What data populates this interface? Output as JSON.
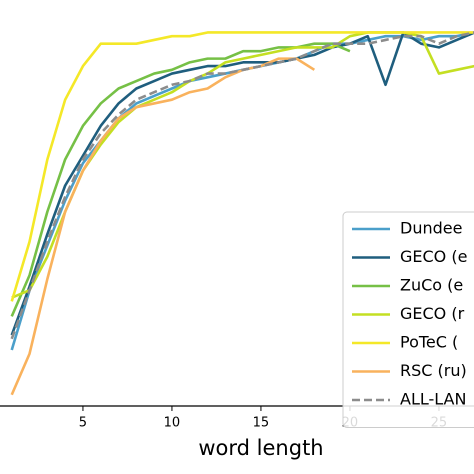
{
  "chart_data": {
    "type": "line",
    "x_label": "word length",
    "x": [
      1,
      2,
      3,
      4,
      5,
      6,
      7,
      8,
      9,
      10,
      11,
      12,
      13,
      14,
      15,
      16,
      17,
      18,
      19,
      20,
      21,
      22,
      23,
      24,
      25,
      26,
      27
    ],
    "xlim": [
      0.34,
      26.97
    ],
    "xticks": [
      5,
      10,
      15,
      20,
      25
    ],
    "ylim": [
      0,
      1.02
    ],
    "legend": "lower right",
    "series": [
      {
        "name": "Dundee",
        "color": "#4b9fca",
        "values": [
          0.15,
          0.31,
          0.43,
          0.55,
          0.65,
          0.71,
          0.77,
          0.81,
          0.83,
          0.85,
          0.87,
          0.88,
          0.89,
          0.9,
          0.91,
          0.92,
          0.93,
          0.95,
          0.97,
          0.97,
          0.98,
          0.99,
          0.99,
          0.98,
          0.99,
          0.99,
          1.0
        ]
      },
      {
        "name": "GECO (e",
        "color": "#1f5e7e",
        "values": [
          0.19,
          0.32,
          0.46,
          0.59,
          0.67,
          0.75,
          0.81,
          0.85,
          0.87,
          0.89,
          0.9,
          0.91,
          0.91,
          0.92,
          0.92,
          0.92,
          0.93,
          0.94,
          0.96,
          0.97,
          0.99,
          0.86,
          1.0,
          0.97,
          0.96,
          0.98,
          1.0
        ]
      },
      {
        "name": "ZuCo (e",
        "color": "#76c046",
        "values": [
          0.24,
          0.35,
          0.52,
          0.66,
          0.75,
          0.81,
          0.85,
          0.87,
          0.89,
          0.9,
          0.92,
          0.93,
          0.93,
          0.95,
          0.95,
          0.96,
          0.96,
          0.97,
          0.97,
          0.95,
          null,
          null,
          null,
          null,
          null,
          null,
          null
        ]
      },
      {
        "name": "GECO (r",
        "color": "#c4df22",
        "values": [
          0.29,
          0.31,
          0.4,
          0.52,
          0.63,
          0.7,
          0.76,
          0.8,
          0.82,
          0.84,
          0.87,
          0.89,
          0.92,
          0.93,
          0.94,
          0.95,
          0.96,
          0.96,
          0.96,
          0.99,
          1.0,
          1.0,
          1.0,
          0.99,
          0.89,
          0.9,
          0.91
        ]
      },
      {
        "name": "PoTeC (",
        "color": "#f4e828",
        "values": [
          0.28,
          0.44,
          0.66,
          0.82,
          0.91,
          0.97,
          0.97,
          0.97,
          0.98,
          0.99,
          0.99,
          1.0,
          1.0,
          1.0,
          1.0,
          1.0,
          1.0,
          1.0,
          1.0,
          1.0,
          1.0,
          1.0,
          1.0,
          1.0,
          1.0,
          1.0,
          1.0
        ]
      },
      {
        "name": "RSC (ru)",
        "color": "#f9b25d",
        "values": [
          0.03,
          0.14,
          0.34,
          0.52,
          0.63,
          0.71,
          0.77,
          0.8,
          0.81,
          0.82,
          0.84,
          0.85,
          0.88,
          0.9,
          0.91,
          0.93,
          0.93,
          0.9,
          null,
          null,
          null,
          null,
          null,
          null,
          null,
          null,
          null
        ]
      },
      {
        "name": "ALL-LAN",
        "color": "#8c8c8c",
        "linestyle": "dashed",
        "values": [
          0.18,
          0.31,
          0.44,
          0.56,
          0.66,
          0.73,
          0.78,
          0.82,
          0.84,
          0.86,
          0.87,
          0.89,
          0.89,
          0.9,
          0.91,
          0.92,
          0.93,
          0.95,
          0.97,
          0.97,
          0.97,
          0.98,
          0.99,
          0.99,
          0.97,
          0.99,
          1.0
        ]
      }
    ]
  }
}
